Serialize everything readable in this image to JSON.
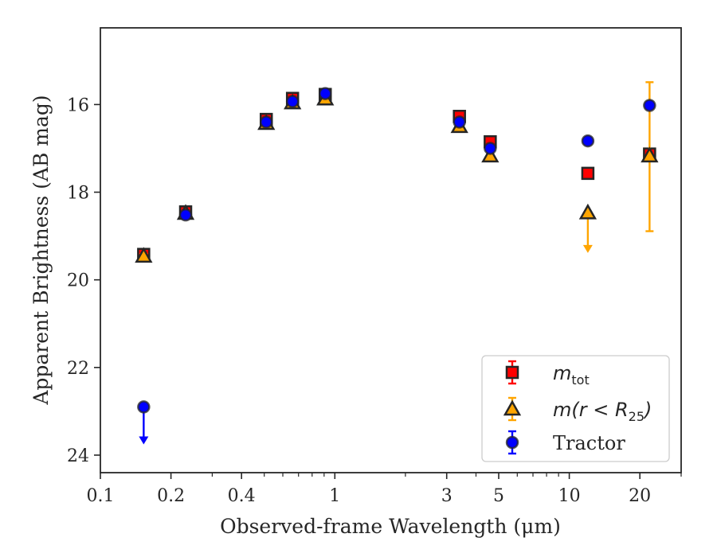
{
  "chart_data": {
    "type": "scatter",
    "title": "",
    "xlabel": "Observed-frame Wavelength (μm)",
    "ylabel": "Apparent Brightness (AB mag)",
    "xscale": "log",
    "xlim": [
      0.1,
      30
    ],
    "ylim": [
      24.4,
      14.25
    ],
    "y_inverted": true,
    "grid": false,
    "legend_position": "lower-right",
    "x_ticks": [
      {
        "value": 0.1,
        "label": "0.1"
      },
      {
        "value": 0.2,
        "label": "0.2"
      },
      {
        "value": 0.4,
        "label": "0.4"
      },
      {
        "value": 1,
        "label": "1"
      },
      {
        "value": 3,
        "label": "3"
      },
      {
        "value": 5,
        "label": "5"
      },
      {
        "value": 10,
        "label": "10"
      },
      {
        "value": 20,
        "label": "20"
      }
    ],
    "y_ticks": [
      {
        "value": 16,
        "label": "16"
      },
      {
        "value": 18,
        "label": "18"
      },
      {
        "value": 20,
        "label": "20"
      },
      {
        "value": 22,
        "label": "22"
      },
      {
        "value": 24,
        "label": "24"
      }
    ],
    "series": [
      {
        "key": "mtot",
        "marker": "square",
        "color": "#ff0000",
        "edge_color": "#262626",
        "legend_main": "m",
        "legend_sub": "tot",
        "legend_suffix": "",
        "points": [
          {
            "x": 0.153,
            "y": 19.42,
            "yerr": 0.07
          },
          {
            "x": 0.231,
            "y": 18.45,
            "yerr": 0.05
          },
          {
            "x": 0.51,
            "y": 16.34,
            "yerr": 0.05
          },
          {
            "x": 0.66,
            "y": 15.86,
            "yerr": 0.06
          },
          {
            "x": 0.91,
            "y": 15.77,
            "yerr": 0.05
          },
          {
            "x": 3.4,
            "y": 16.27,
            "yerr": 0.06
          },
          {
            "x": 4.6,
            "y": 16.85,
            "yerr": 0.06
          },
          {
            "x": 12.0,
            "y": 17.57,
            "yerr": 0.05
          },
          {
            "x": 22.0,
            "y": 17.13,
            "yerr": 0.05
          }
        ]
      },
      {
        "key": "mr25",
        "marker": "triangle",
        "color": "#ffa500",
        "edge_color": "#262626",
        "legend_main": "m(r < R",
        "legend_sub": "25",
        "legend_suffix": ")",
        "points": [
          {
            "x": 0.153,
            "y": 19.46,
            "yerr": 0.05
          },
          {
            "x": 0.231,
            "y": 18.48,
            "yerr": 0.05
          },
          {
            "x": 0.51,
            "y": 16.43,
            "yerr": 0.05
          },
          {
            "x": 0.66,
            "y": 15.96,
            "yerr": 0.05
          },
          {
            "x": 0.91,
            "y": 15.87,
            "yerr": 0.05
          },
          {
            "x": 3.4,
            "y": 16.5,
            "yerr": 0.05
          },
          {
            "x": 4.6,
            "y": 17.17,
            "yerr": 0.05
          },
          {
            "x": 12.0,
            "y": 18.47,
            "upper_limit": true,
            "arrow_to": 19.35
          },
          {
            "x": 22.0,
            "y": 17.17,
            "yerr_low": 1.68,
            "yerr_high": 1.72
          }
        ]
      },
      {
        "key": "tractor",
        "marker": "circle",
        "color": "#0000ff",
        "edge_color": "#262626",
        "legend_main": "Tractor",
        "legend_sub": "",
        "legend_suffix": "",
        "points": [
          {
            "x": 0.153,
            "y": 22.9,
            "upper_limit": true,
            "arrow_to": 23.72
          },
          {
            "x": 0.231,
            "y": 18.52,
            "yerr": 0.04
          },
          {
            "x": 0.51,
            "y": 16.4,
            "yerr": 0.04
          },
          {
            "x": 0.66,
            "y": 15.93,
            "yerr": 0.04
          },
          {
            "x": 0.91,
            "y": 15.75,
            "yerr": 0.04
          },
          {
            "x": 3.4,
            "y": 16.4,
            "yerr": 0.04
          },
          {
            "x": 4.6,
            "y": 17.0,
            "yerr": 0.04
          },
          {
            "x": 12.0,
            "y": 16.83,
            "yerr": 0.04
          },
          {
            "x": 22.0,
            "y": 16.02,
            "yerr": 0.04
          }
        ]
      }
    ]
  }
}
